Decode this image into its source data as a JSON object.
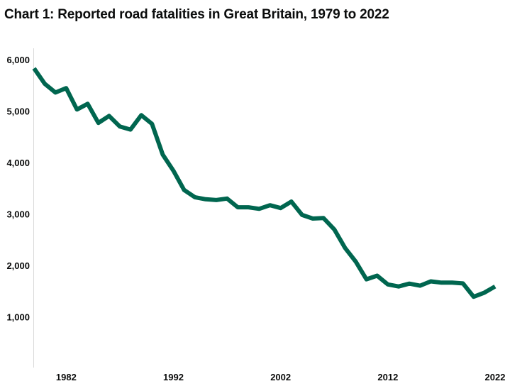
{
  "chart_data": {
    "type": "line",
    "title": "Chart 1: Reported road fatalities in Great Britain, 1979 to 2022",
    "xlabel": "",
    "ylabel": "",
    "x": [
      1979,
      1980,
      1981,
      1982,
      1983,
      1984,
      1985,
      1986,
      1987,
      1988,
      1989,
      1990,
      1991,
      1992,
      1993,
      1994,
      1995,
      1996,
      1997,
      1998,
      1999,
      2000,
      2001,
      2002,
      2003,
      2004,
      2005,
      2006,
      2007,
      2008,
      2009,
      2010,
      2011,
      2012,
      2013,
      2014,
      2015,
      2016,
      2017,
      2018,
      2019,
      2020,
      2021,
      2022
    ],
    "values": [
      5830,
      5530,
      5360,
      5445,
      5030,
      5140,
      4770,
      4905,
      4700,
      4640,
      4920,
      4750,
      4155,
      3840,
      3465,
      3325,
      3285,
      3270,
      3300,
      3130,
      3130,
      3100,
      3170,
      3115,
      3240,
      2980,
      2910,
      2920,
      2700,
      2340,
      2075,
      1730,
      1800,
      1630,
      1590,
      1645,
      1605,
      1690,
      1665,
      1665,
      1650,
      1390,
      1470,
      1590
    ],
    "xticks": [
      "1982",
      "1992",
      "2002",
      "2012",
      "2022"
    ],
    "yticks": [
      "1,000",
      "2,000",
      "3,000",
      "4,000",
      "5,000",
      "6,000"
    ],
    "ylim": [
      0,
      6200
    ],
    "xlim": [
      1979,
      2022
    ],
    "grid": false,
    "line_color": "#00664f"
  }
}
